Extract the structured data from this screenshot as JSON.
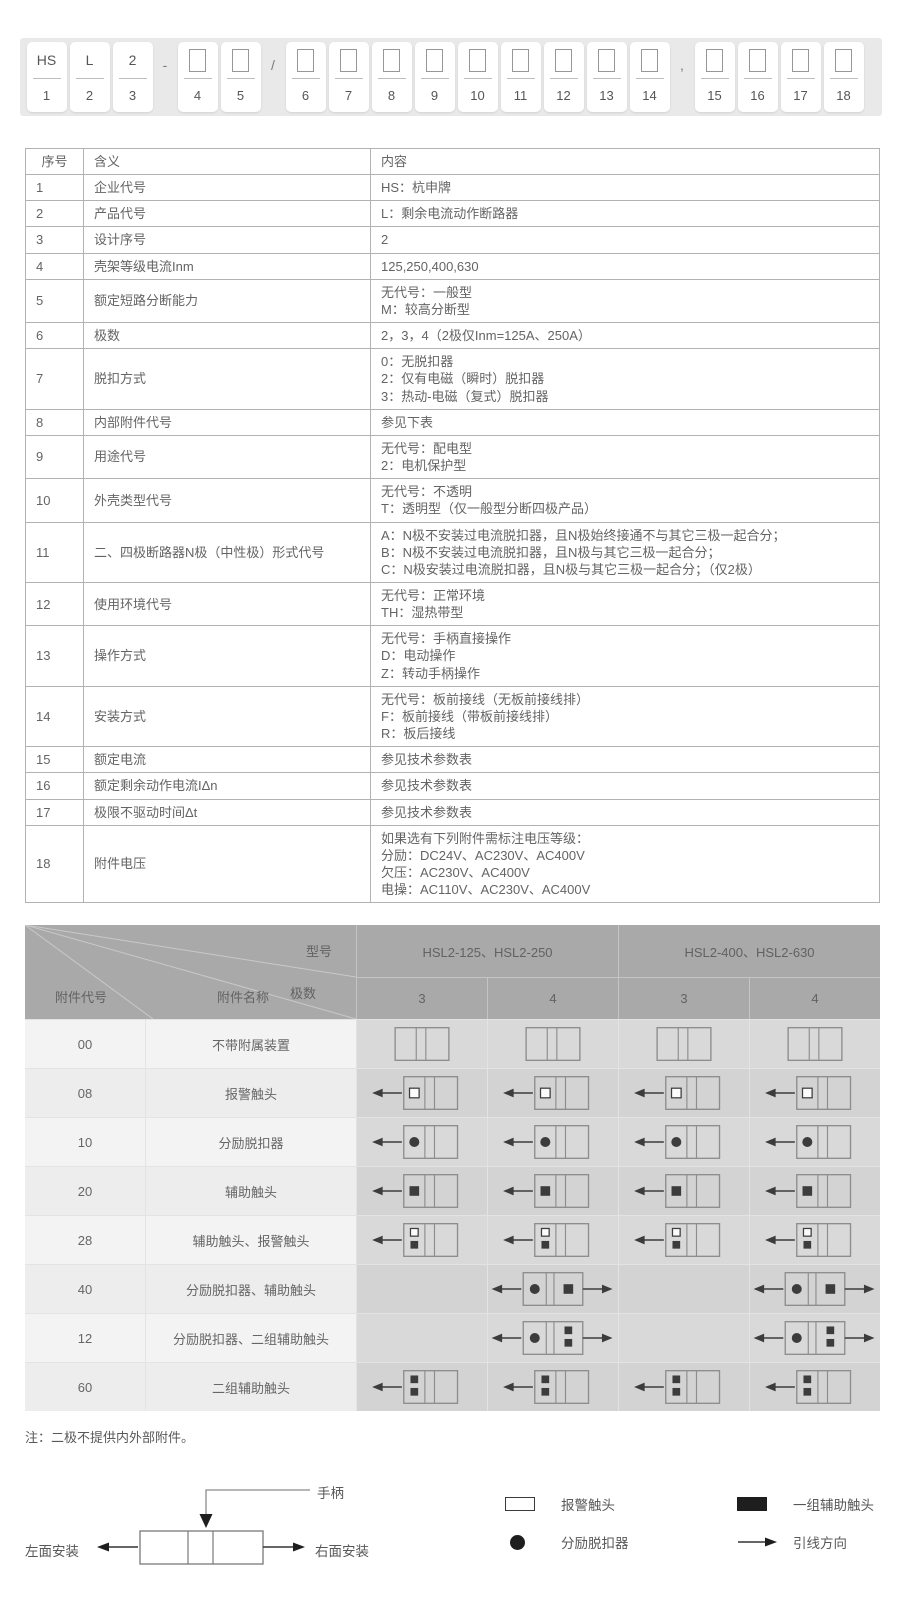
{
  "colors": {
    "strip_bg": "#e9e9e9",
    "table_border": "#b2b2b2",
    "header_gray": "#a9a9a9",
    "diag_cell_a": "#d9d9d9",
    "diag_cell_b": "#d3d3d3",
    "name_cell_a": "#f3f3f3",
    "name_cell_b": "#ededed",
    "symbol_dark": "#1e1e1e"
  },
  "model_code": {
    "positions": [
      {
        "num": "1",
        "label": "HS"
      },
      {
        "num": "2",
        "label": "L"
      },
      {
        "num": "3",
        "label": "2"
      },
      {
        "num": "4",
        "box": true,
        "sep_before": "-"
      },
      {
        "num": "5",
        "box": true
      },
      {
        "num": "6",
        "box": true,
        "sep_before": "/"
      },
      {
        "num": "7",
        "box": true
      },
      {
        "num": "8",
        "box": true
      },
      {
        "num": "9",
        "box": true
      },
      {
        "num": "10",
        "box": true
      },
      {
        "num": "11",
        "box": true
      },
      {
        "num": "12",
        "box": true
      },
      {
        "num": "13",
        "box": true
      },
      {
        "num": "14",
        "box": true
      },
      {
        "num": "15",
        "box": true,
        "sep_before": ","
      },
      {
        "num": "16",
        "box": true
      },
      {
        "num": "17",
        "box": true
      },
      {
        "num": "18",
        "box": true
      }
    ]
  },
  "main_table": {
    "headers": [
      "序号",
      "含义",
      "内容"
    ],
    "rows": [
      {
        "no": "1",
        "meaning": "企业代号",
        "content": "HS：杭申牌"
      },
      {
        "no": "2",
        "meaning": "产品代号",
        "content": "L：剩余电流动作断路器"
      },
      {
        "no": "3",
        "meaning": "设计序号",
        "content": "2"
      },
      {
        "no": "4",
        "meaning": "壳架等级电流Inm",
        "content": "125,250,400,630"
      },
      {
        "no": "5",
        "meaning": "额定短路分断能力",
        "content": "无代号：一般型\nM：较高分断型"
      },
      {
        "no": "6",
        "meaning": "极数",
        "content": "2，3，4（2极仅Inm=125A、250A）"
      },
      {
        "no": "7",
        "meaning": "脱扣方式",
        "content": "0：无脱扣器\n2：仅有电磁（瞬时）脱扣器\n3：热动-电磁（复式）脱扣器"
      },
      {
        "no": "8",
        "meaning": "内部附件代号",
        "content": "参见下表"
      },
      {
        "no": "9",
        "meaning": "用途代号",
        "content": "无代号：配电型\n2：电机保护型"
      },
      {
        "no": "10",
        "meaning": "外壳类型代号",
        "content": "无代号：不透明\nT：透明型（仅一般型分断四极产品）"
      },
      {
        "no": "11",
        "meaning": "二、四极断路器N极（中性极）形式代号",
        "content": "A：N极不安装过电流脱扣器，且N极始终接通不与其它三极一起合分；\nB：N极不安装过电流脱扣器，且N极与其它三极一起合分；\nC：N极安装过电流脱扣器，且N极与其它三极一起合分；（仅2极）"
      },
      {
        "no": "12",
        "meaning": "使用环境代号",
        "content": "无代号：正常环境\nTH：湿热带型"
      },
      {
        "no": "13",
        "meaning": "操作方式",
        "content": "无代号：手柄直接操作\nD：电动操作\nZ：转动手柄操作"
      },
      {
        "no": "14",
        "meaning": "安装方式",
        "content": "无代号：板前接线（无板前接线排）\nF：板前接线（带板前接线排）\nR：板后接线"
      },
      {
        "no": "15",
        "meaning": "额定电流",
        "content": "参见技术参数表"
      },
      {
        "no": "16",
        "meaning": "额定剩余动作电流IΔn",
        "content": "参见技术参数表"
      },
      {
        "no": "17",
        "meaning": "极限不驱动时间Δt",
        "content": "参见技术参数表"
      },
      {
        "no": "18",
        "meaning": "附件电压",
        "content": "如果选有下列附件需标注电压等级：\n分励：DC24V、AC230V、AC400V\n欠压：AC230V、AC400V\n电操：AC110V、AC230V、AC400V"
      }
    ]
  },
  "accessory_table": {
    "corner": {
      "model": "型号",
      "poles": "极数",
      "code": "附件代号",
      "name": "附件名称"
    },
    "model_groups": [
      "HSL2-125、HSL2-250",
      "HSL2-400、HSL2-630"
    ],
    "pole_columns": [
      "3",
      "4",
      "3",
      "4"
    ],
    "rows": [
      {
        "code": "00",
        "name": "不带附属装置",
        "diagrams": [
          "base",
          "base",
          "base",
          "base"
        ]
      },
      {
        "code": "08",
        "name": "报警触头",
        "diagrams": [
          "alarm",
          "alarm",
          "alarm",
          "alarm"
        ]
      },
      {
        "code": "10",
        "name": "分励脱扣器",
        "diagrams": [
          "shunt",
          "shunt",
          "shunt",
          "shunt"
        ]
      },
      {
        "code": "20",
        "name": "辅助触头",
        "diagrams": [
          "aux",
          "aux",
          "aux",
          "aux"
        ]
      },
      {
        "code": "28",
        "name": "辅助触头、报警触头",
        "diagrams": [
          "auxalarm",
          "auxalarm",
          "auxalarm",
          "auxalarm"
        ]
      },
      {
        "code": "40",
        "name": "分励脱扣器、辅助触头",
        "diagrams": [
          "",
          "shuntaux",
          "",
          "shuntaux"
        ]
      },
      {
        "code": "12",
        "name": "分励脱扣器、二组辅助触头",
        "diagrams": [
          "",
          "shunt2aux",
          "",
          "shunt2aux"
        ]
      },
      {
        "code": "60",
        "name": "二组辅助触头",
        "diagrams": [
          "aux2",
          "aux2",
          "aux2",
          "aux2"
        ]
      }
    ]
  },
  "note": "注：二极不提供内外部附件。",
  "footer": {
    "handle": "手柄",
    "mount_left": "左面安装",
    "mount_right": "右面安装",
    "legend": [
      {
        "icon": "alarm-contact",
        "label": "报警触头"
      },
      {
        "icon": "aux-contact-group",
        "label": "一组辅助触头"
      },
      {
        "icon": "shunt-release",
        "label": "分励脱扣器"
      },
      {
        "icon": "lead-direction",
        "label": "引线方向"
      }
    ]
  }
}
